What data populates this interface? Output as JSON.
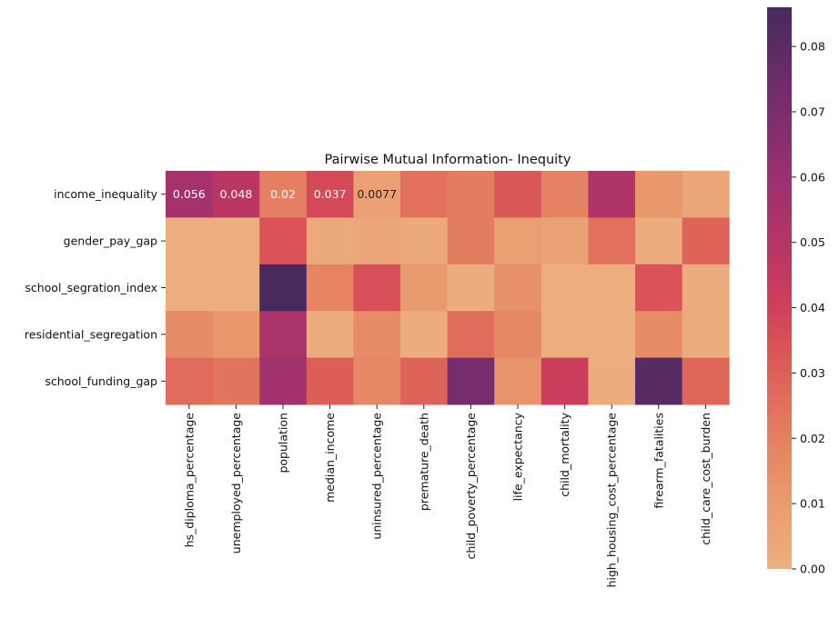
{
  "chart_data": {
    "type": "heatmap",
    "title": "Pairwise Mutual Information- Inequity",
    "rows": [
      "income_inequality",
      "gender_pay_gap",
      "school_segration_index",
      "residential_segregation",
      "school_funding_gap"
    ],
    "columns": [
      "hs_diploma_percentage",
      "unemployed_percentage",
      "population",
      "median_income",
      "uninsured_percentage",
      "premature_death",
      "child_poverty_percentage",
      "life_expectancy",
      "child_mortality",
      "high_housing_cost_percentage",
      "firearm_fatalities",
      "child_care_cost_burden"
    ],
    "values": [
      [
        0.056,
        0.048,
        0.02,
        0.037,
        0.0077,
        0.025,
        0.021,
        0.033,
        0.019,
        0.052,
        0.011,
        0.004
      ],
      [
        0.001,
        0.001,
        0.034,
        0.003,
        0.004,
        0.003,
        0.021,
        0.008,
        0.007,
        0.025,
        0.002,
        0.029
      ],
      [
        0.001,
        0.001,
        0.086,
        0.018,
        0.035,
        0.01,
        0.002,
        0.014,
        0.001,
        0.001,
        0.034,
        0.002
      ],
      [
        0.015,
        0.011,
        0.054,
        0.002,
        0.015,
        0.002,
        0.026,
        0.017,
        0.001,
        0.001,
        0.015,
        0.002
      ],
      [
        0.026,
        0.024,
        0.057,
        0.031,
        0.017,
        0.029,
        0.072,
        0.013,
        0.042,
        0.002,
        0.081,
        0.028
      ]
    ],
    "annotations": [
      {
        "row": 0,
        "col": 0,
        "text": "0.056"
      },
      {
        "row": 0,
        "col": 1,
        "text": "0.048"
      },
      {
        "row": 0,
        "col": 2,
        "text": "0.02"
      },
      {
        "row": 0,
        "col": 3,
        "text": "0.037"
      },
      {
        "row": 0,
        "col": 4,
        "text": "0.0077"
      }
    ],
    "colorbar": {
      "range": [
        0,
        0.086
      ],
      "ticks": [
        0.0,
        0.01,
        0.02,
        0.03,
        0.04,
        0.05,
        0.06,
        0.07,
        0.08
      ],
      "tick_labels": [
        "0.00",
        "0.01",
        "0.02",
        "0.03",
        "0.04",
        "0.05",
        "0.06",
        "0.07",
        "0.08"
      ],
      "colormap": "flare",
      "low_color": "#edb081",
      "high_color": "#482a5e"
    }
  }
}
